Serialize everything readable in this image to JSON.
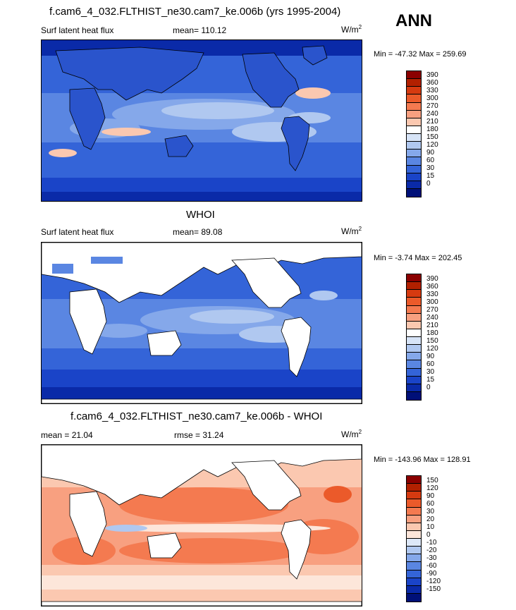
{
  "season": "ANN",
  "panels": [
    {
      "title": "f.cam6_4_032.FLTHIST_ne30.cam7_ke.006b (yrs 1995-2004)",
      "left_label": "Surf latent heat flux",
      "stat_label": "mean= 110.12",
      "units_base": "W/m",
      "units_exp": "2",
      "minmax": "Min = -47.32 Max = 259.69",
      "colorbar_labels": [
        "390",
        "360",
        "330",
        "300",
        "270",
        "240",
        "210",
        "180",
        "150",
        "120",
        "90",
        "60",
        "30",
        "15",
        "0"
      ],
      "colorbar_colors": [
        "#8b0000",
        "#b22000",
        "#d63a10",
        "#eb5a2a",
        "#f47a50",
        "#f8a080",
        "#fbc8b0",
        "#ffffff",
        "#d7e4f7",
        "#b0c8f0",
        "#85a8ea",
        "#5a86e2",
        "#3464d8",
        "#1a44c8",
        "#0a2aa8",
        "#001078"
      ]
    },
    {
      "title": "WHOI",
      "left_label": "Surf latent heat flux",
      "stat_label": "mean=  89.08",
      "units_base": "W/m",
      "units_exp": "2",
      "minmax": "Min =  -3.74 Max = 202.45",
      "colorbar_labels": [
        "390",
        "360",
        "330",
        "300",
        "270",
        "240",
        "210",
        "180",
        "150",
        "120",
        "90",
        "60",
        "30",
        "15",
        "0"
      ],
      "colorbar_colors": [
        "#8b0000",
        "#b22000",
        "#d63a10",
        "#eb5a2a",
        "#f47a50",
        "#f8a080",
        "#fbc8b0",
        "#ffffff",
        "#d7e4f7",
        "#b0c8f0",
        "#85a8ea",
        "#5a86e2",
        "#3464d8",
        "#1a44c8",
        "#0a2aa8",
        "#001078"
      ]
    },
    {
      "title": "f.cam6_4_032.FLTHIST_ne30.cam7_ke.006b - WHOI",
      "left_label": "mean =  21.04",
      "stat_label": "rmse =  31.24",
      "units_base": "W/m",
      "units_exp": "2",
      "minmax": "Min = -143.96 Max = 128.91",
      "colorbar_labels": [
        "150",
        "120",
        "90",
        "60",
        "30",
        "20",
        "10",
        "0",
        "-10",
        "-20",
        "-30",
        "-60",
        "-90",
        "-120",
        "-150"
      ],
      "colorbar_colors": [
        "#8b0000",
        "#b22000",
        "#d63a10",
        "#eb5a2a",
        "#f47a50",
        "#f8a080",
        "#fbc8b0",
        "#fde6da",
        "#dde8f8",
        "#b0c8f0",
        "#85a8ea",
        "#5a86e2",
        "#3464d8",
        "#1a44c8",
        "#0a2aa8",
        "#001078"
      ]
    }
  ]
}
